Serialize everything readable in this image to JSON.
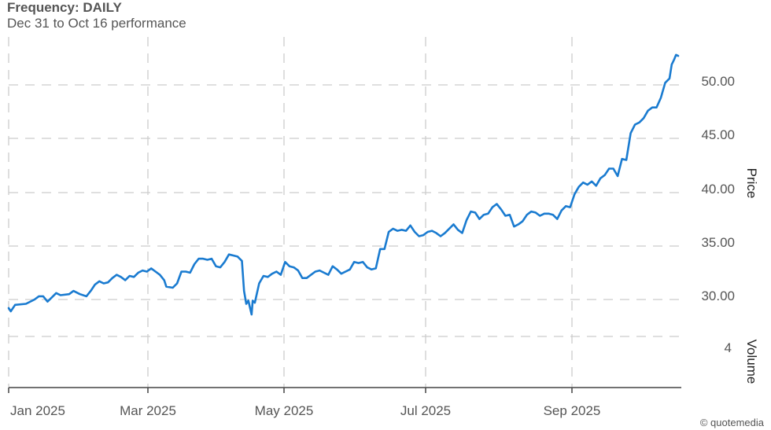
{
  "header": {
    "frequency": "Frequency: DAILY",
    "subtitle": "Dec 31 to Oct 16 performance"
  },
  "footer": {
    "copyright": "© quotemedia"
  },
  "chart_data": {
    "type": "line",
    "x_ticks": [
      "Jan 2025",
      "Mar 2025",
      "May 2025",
      "Jul 2025",
      "Sep 2025"
    ],
    "y_ticks": [
      "30.00",
      "35.00",
      "40.00",
      "45.00",
      "50.00"
    ],
    "ylabel": "Price",
    "volume_label": "Volume",
    "volume_tick": "4",
    "ylim": [
      27.5,
      53.5
    ],
    "grid": true,
    "line_color": "#1a7bd0",
    "series": [
      {
        "values": [
          [
            0,
            29.2
          ],
          [
            1,
            28.9
          ],
          [
            3,
            29.5
          ],
          [
            8,
            29.6
          ],
          [
            12,
            30.0
          ],
          [
            14,
            30.3
          ],
          [
            16,
            30.3
          ],
          [
            18,
            29.8
          ],
          [
            20,
            30.2
          ],
          [
            22,
            30.6
          ],
          [
            24,
            30.4
          ],
          [
            28,
            30.5
          ],
          [
            30,
            30.8
          ],
          [
            33,
            30.5
          ],
          [
            36,
            30.3
          ],
          [
            38,
            30.8
          ],
          [
            40,
            31.4
          ],
          [
            42,
            31.7
          ],
          [
            44,
            31.5
          ],
          [
            46,
            31.6
          ],
          [
            48,
            32.0
          ],
          [
            50,
            32.3
          ],
          [
            52,
            32.1
          ],
          [
            54,
            31.8
          ],
          [
            56,
            32.2
          ],
          [
            58,
            32.1
          ],
          [
            60,
            32.5
          ],
          [
            62,
            32.7
          ],
          [
            64,
            32.6
          ],
          [
            66,
            32.9
          ],
          [
            68,
            32.6
          ],
          [
            70,
            32.3
          ],
          [
            72,
            31.8
          ],
          [
            73,
            31.2
          ],
          [
            76,
            31.1
          ],
          [
            78,
            31.5
          ],
          [
            80,
            32.6
          ],
          [
            82,
            32.6
          ],
          [
            84,
            32.5
          ],
          [
            86,
            33.3
          ],
          [
            88,
            33.8
          ],
          [
            90,
            33.8
          ],
          [
            92,
            33.7
          ],
          [
            94,
            33.8
          ],
          [
            96,
            33.1
          ],
          [
            98,
            33.0
          ],
          [
            100,
            33.5
          ],
          [
            102,
            34.2
          ],
          [
            104,
            34.1
          ],
          [
            106,
            34.0
          ],
          [
            108,
            33.6
          ],
          [
            109,
            30.8
          ],
          [
            110,
            29.6
          ],
          [
            111,
            29.9
          ],
          [
            112,
            29.0
          ],
          [
            112.5,
            28.6
          ],
          [
            113,
            29.9
          ],
          [
            114,
            29.7
          ],
          [
            116,
            31.5
          ],
          [
            118,
            32.2
          ],
          [
            120,
            32.1
          ],
          [
            122,
            32.4
          ],
          [
            124,
            32.6
          ],
          [
            126,
            32.3
          ],
          [
            128,
            33.5
          ],
          [
            130,
            33.1
          ],
          [
            132,
            33.0
          ],
          [
            134,
            32.7
          ],
          [
            136,
            32.0
          ],
          [
            138,
            32.0
          ],
          [
            140,
            32.3
          ],
          [
            142,
            32.6
          ],
          [
            144,
            32.7
          ],
          [
            146,
            32.5
          ],
          [
            148,
            32.3
          ],
          [
            150,
            33.1
          ],
          [
            152,
            32.8
          ],
          [
            154,
            32.4
          ],
          [
            156,
            32.6
          ],
          [
            158,
            32.8
          ],
          [
            160,
            33.5
          ],
          [
            162,
            33.4
          ],
          [
            164,
            33.5
          ],
          [
            166,
            33.0
          ],
          [
            168,
            32.8
          ],
          [
            170,
            32.9
          ],
          [
            172,
            34.7
          ],
          [
            174,
            34.7
          ],
          [
            176,
            36.3
          ],
          [
            178,
            36.6
          ],
          [
            180,
            36.4
          ],
          [
            182,
            36.5
          ],
          [
            184,
            36.4
          ],
          [
            186,
            36.9
          ],
          [
            188,
            36.3
          ],
          [
            190,
            35.9
          ],
          [
            192,
            36.0
          ],
          [
            194,
            36.3
          ],
          [
            196,
            36.4
          ],
          [
            198,
            36.2
          ],
          [
            200,
            35.9
          ],
          [
            202,
            36.2
          ],
          [
            204,
            36.6
          ],
          [
            206,
            37.0
          ],
          [
            208,
            36.5
          ],
          [
            210,
            36.2
          ],
          [
            212,
            37.4
          ],
          [
            214,
            38.2
          ],
          [
            216,
            38.1
          ],
          [
            218,
            37.5
          ],
          [
            220,
            37.9
          ],
          [
            222,
            38.0
          ],
          [
            224,
            38.6
          ],
          [
            226,
            38.9
          ],
          [
            228,
            38.4
          ],
          [
            230,
            37.8
          ],
          [
            232,
            37.9
          ],
          [
            234,
            36.8
          ],
          [
            236,
            37.0
          ],
          [
            238,
            37.3
          ],
          [
            240,
            37.9
          ],
          [
            242,
            38.2
          ],
          [
            244,
            38.1
          ],
          [
            246,
            37.8
          ],
          [
            248,
            38.0
          ],
          [
            250,
            38.0
          ],
          [
            252,
            37.9
          ],
          [
            254,
            37.5
          ],
          [
            256,
            38.3
          ],
          [
            258,
            38.7
          ],
          [
            260,
            38.6
          ],
          [
            262,
            39.8
          ],
          [
            264,
            40.5
          ],
          [
            266,
            40.9
          ],
          [
            268,
            40.7
          ],
          [
            270,
            41.0
          ],
          [
            272,
            40.6
          ],
          [
            274,
            41.3
          ],
          [
            276,
            41.6
          ],
          [
            278,
            42.2
          ],
          [
            280,
            42.2
          ],
          [
            282,
            41.5
          ],
          [
            284,
            43.1
          ],
          [
            286,
            43.0
          ],
          [
            288,
            45.5
          ],
          [
            290,
            46.3
          ],
          [
            292,
            46.5
          ],
          [
            294,
            46.9
          ],
          [
            296,
            47.6
          ],
          [
            298,
            47.9
          ],
          [
            300,
            47.9
          ],
          [
            302,
            48.8
          ],
          [
            304,
            50.2
          ],
          [
            306,
            50.6
          ],
          [
            307,
            51.9
          ],
          [
            308,
            52.3
          ],
          [
            309,
            52.8
          ],
          [
            310,
            52.7
          ]
        ]
      }
    ]
  }
}
